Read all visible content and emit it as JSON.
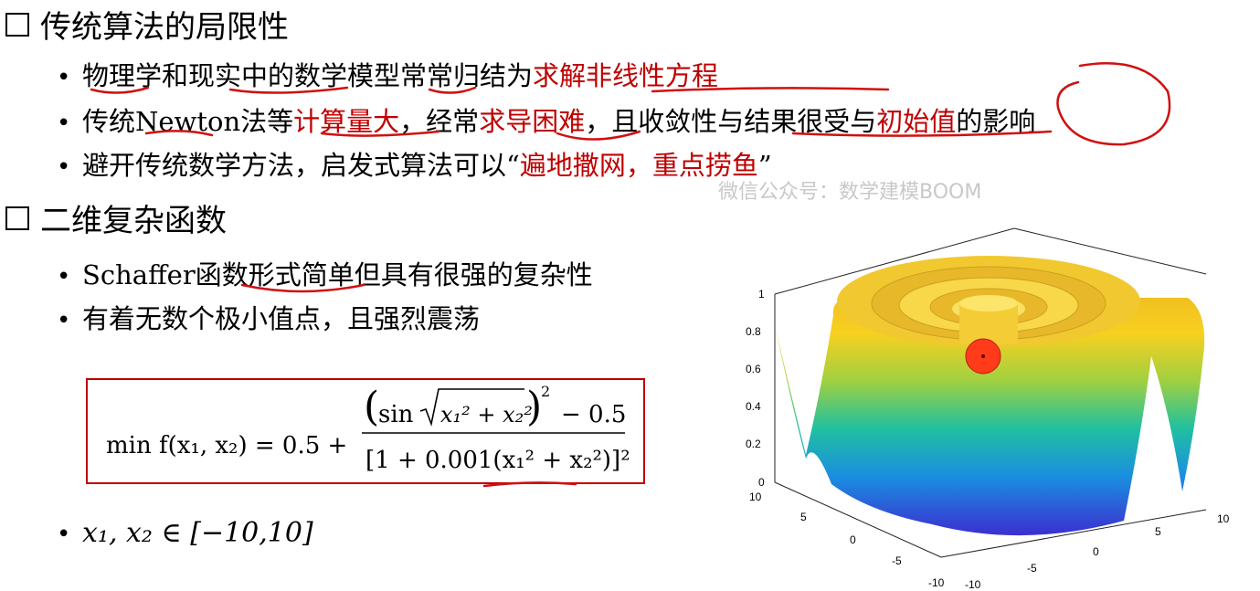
{
  "section1": {
    "heading": "传统算法的局限性",
    "bullets": [
      {
        "prefix": "物理学和现实中的数学模型常常归结为",
        "highlight": "求解非线性方程",
        "suffix": ""
      },
      {
        "prefix": "传统Newton法等",
        "highlight": "计算量大",
        "mid": "，经常",
        "highlight2": "求导困难",
        "mid2": "，且收敛性与结果很受与",
        "highlight3": "初始值",
        "suffix": "的影响"
      },
      {
        "prefix": "避开传统数学方法，启发式算法可以“",
        "highlight": "遍地撒网，重点捞鱼",
        "suffix": "”"
      }
    ]
  },
  "watermark": "微信公众号：数学建模BOOM",
  "section2": {
    "heading": "二维复杂函数",
    "bullets": [
      "Schaffer函数形式简单但具有很强的复杂性",
      "有着无数个极小值点，且强烈震荡"
    ],
    "formula": {
      "lhs": "min f(x₁, x₂) = 0.5 +",
      "numerator_sin": "sin",
      "numerator_rad": "x₁² + x₂²",
      "numerator_tail": "− 0.5",
      "denominator": "[1 + 0.001(x₁² + x₂²)]²"
    },
    "domain": "x₁, x₂ ∈ [−10,10]"
  },
  "plot": {
    "z_ticks": [
      "0",
      "0.2",
      "0.4",
      "0.6",
      "0.8",
      "1"
    ],
    "y_ticks": [
      "10",
      "5",
      "0",
      "-5",
      "-10"
    ],
    "x_ticks": [
      "10",
      "5",
      "0",
      "-5",
      "-10"
    ],
    "colormap": [
      "#3b2fd0",
      "#1a8fe0",
      "#20c0a0",
      "#a0d040",
      "#f8d020"
    ],
    "marker_color": "#ff3b1a"
  }
}
